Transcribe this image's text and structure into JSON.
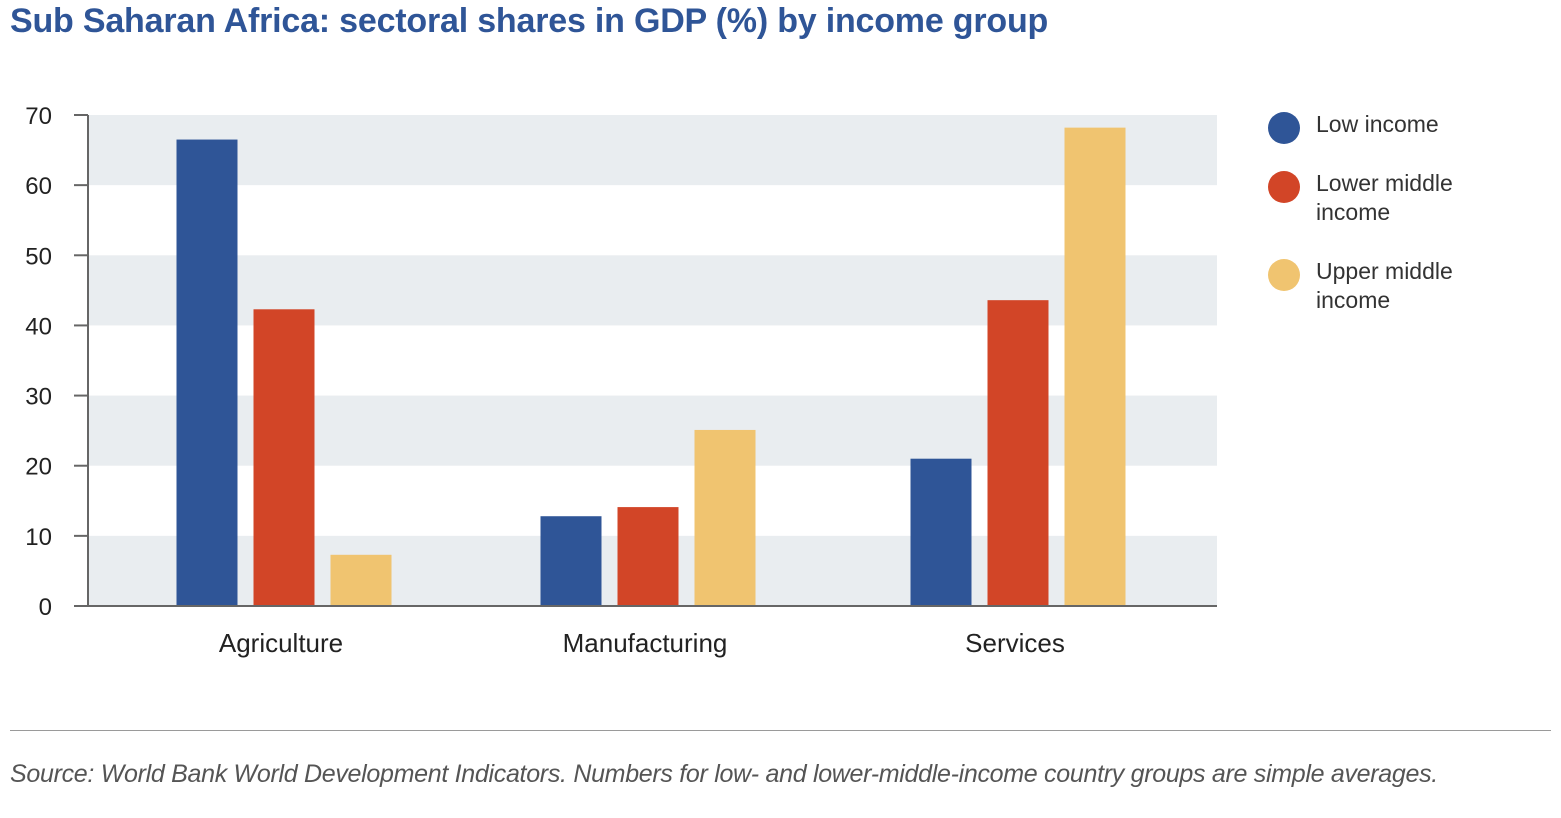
{
  "title": "Sub Saharan Africa: sectoral shares in GDP (%) by income group",
  "source": "Source: World Bank World Development Indicators. Numbers for low- and lower-middle-income country groups are simple averages.",
  "legend": [
    {
      "label": "Low income",
      "color": "#2f5597"
    },
    {
      "label": "Lower middle income",
      "color": "#d24527"
    },
    {
      "label": "Upper middle income",
      "color": "#f0c470"
    }
  ],
  "chart_data": {
    "type": "bar",
    "title": "Sub Saharan Africa: sectoral shares in GDP (%) by income group",
    "categories": [
      "Agriculture",
      "Manufacturing",
      "Services"
    ],
    "series": [
      {
        "name": "Low income",
        "color": "#2f5597",
        "values": [
          66.5,
          12.8,
          21
        ]
      },
      {
        "name": "Lower middle income",
        "color": "#d24527",
        "values": [
          42.3,
          14.1,
          43.6
        ]
      },
      {
        "name": "Upper middle income",
        "color": "#f0c470",
        "values": [
          7.3,
          25.1,
          68.2
        ]
      }
    ],
    "xlabel": "",
    "ylabel": "",
    "ylim": [
      0,
      70
    ],
    "yticks": [
      0,
      10,
      20,
      30,
      40,
      50,
      60,
      70
    ],
    "grid": "alternating horizontal bands",
    "band_color": "#e9edf0",
    "legend_position": "right"
  }
}
